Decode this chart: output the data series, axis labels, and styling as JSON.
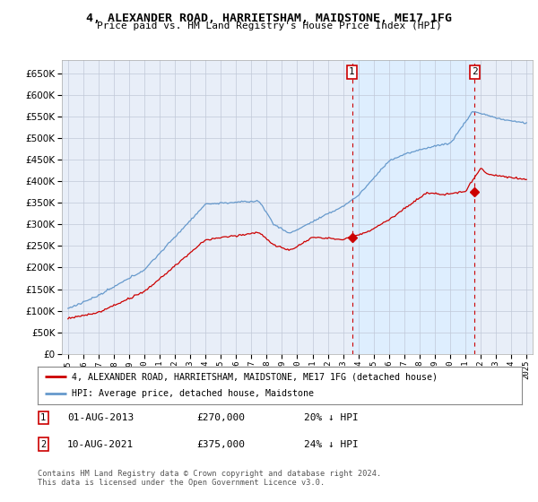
{
  "title": "4, ALEXANDER ROAD, HARRIETSHAM, MAIDSTONE, ME17 1FG",
  "subtitle": "Price paid vs. HM Land Registry's House Price Index (HPI)",
  "ylim": [
    0,
    680000
  ],
  "yticks": [
    0,
    50000,
    100000,
    150000,
    200000,
    250000,
    300000,
    350000,
    400000,
    450000,
    500000,
    550000,
    600000,
    650000
  ],
  "sale1_x": 2013.58,
  "sale1_price": 270000,
  "sale2_x": 2021.6,
  "sale2_price": 375000,
  "legend_property": "4, ALEXANDER ROAD, HARRIETSHAM, MAIDSTONE, ME17 1FG (detached house)",
  "legend_hpi": "HPI: Average price, detached house, Maidstone",
  "footer": "Contains HM Land Registry data © Crown copyright and database right 2024.\nThis data is licensed under the Open Government Licence v3.0.",
  "property_color": "#cc0000",
  "hpi_color": "#6699cc",
  "shade_color": "#ddeeff",
  "background_color": "#e8eef8",
  "grid_color": "#c0c8d8"
}
